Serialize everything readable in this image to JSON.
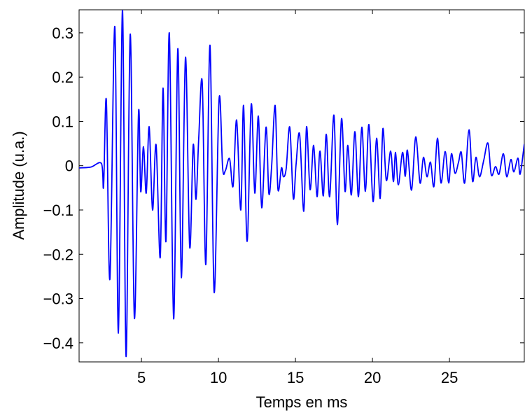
{
  "chart_data": {
    "type": "line",
    "x_label": "Temps en ms",
    "y_label": "Amplitude (u.a.)",
    "x": [
      0.95,
      1.72,
      2.4,
      2.54,
      2.72,
      2.95,
      3.27,
      3.5,
      3.77,
      4.0,
      4.27,
      4.54,
      4.81,
      4.95,
      5.13,
      5.31,
      5.5,
      5.72,
      5.95,
      6.22,
      6.4,
      6.59,
      6.81,
      7.09,
      7.36,
      7.59,
      7.86,
      8.13,
      8.36,
      8.54,
      8.72,
      8.95,
      9.18,
      9.45,
      9.72,
      10.04,
      10.27,
      10.45,
      10.72,
      10.95,
      11.18,
      11.45,
      11.63,
      11.86,
      12.13,
      12.36,
      12.59,
      12.81,
      13.09,
      13.27,
      13.45,
      13.68,
      13.86,
      14.09,
      14.22,
      14.4,
      14.63,
      14.86,
      15.04,
      15.27,
      15.54,
      15.72,
      15.95,
      16.18,
      16.4,
      16.59,
      16.81,
      17.0,
      17.22,
      17.5,
      17.72,
      17.99,
      18.22,
      18.4,
      18.63,
      18.86,
      19.09,
      19.31,
      19.54,
      19.77,
      20.04,
      20.27,
      20.5,
      20.68,
      20.9,
      21.18,
      21.36,
      21.5,
      21.68,
      21.95,
      22.13,
      22.27,
      22.54,
      22.81,
      23.09,
      23.31,
      23.54,
      23.77,
      23.99,
      24.22,
      24.45,
      24.72,
      24.95,
      25.13,
      25.36,
      25.59,
      25.77,
      25.99,
      26.27,
      26.5,
      26.72,
      26.95,
      27.22,
      27.5,
      27.72,
      27.99,
      28.22,
      28.5,
      28.72,
      28.99,
      29.18,
      29.45,
      29.59,
      29.86
    ],
    "series": [
      {
        "color": "#0000ff",
        "values": [
          -0.005,
          -0.003,
          0.005,
          -0.046,
          0.148,
          -0.256,
          0.314,
          -0.378,
          0.352,
          -0.431,
          0.297,
          -0.344,
          0.12,
          -0.058,
          0.043,
          -0.062,
          0.088,
          -0.1,
          0.047,
          -0.207,
          0.175,
          -0.171,
          0.299,
          -0.346,
          0.264,
          -0.253,
          0.245,
          -0.183,
          0.047,
          -0.076,
          0.063,
          0.186,
          -0.223,
          0.272,
          -0.286,
          0.15,
          -0.005,
          -0.011,
          0.016,
          -0.046,
          0.103,
          -0.1,
          0.136,
          -0.171,
          0.139,
          -0.062,
          0.112,
          -0.095,
          0.087,
          -0.062,
          -0.003,
          0.136,
          -0.052,
          -0.005,
          -0.025,
          -0.006,
          0.087,
          -0.074,
          0.003,
          0.071,
          -0.103,
          0.088,
          -0.054,
          0.046,
          -0.07,
          0.033,
          -0.068,
          0.071,
          -0.07,
          0.114,
          -0.133,
          0.106,
          -0.058,
          0.046,
          -0.066,
          0.077,
          -0.07,
          0.087,
          -0.058,
          0.093,
          -0.081,
          0.062,
          -0.074,
          0.084,
          -0.033,
          0.033,
          -0.036,
          0.03,
          -0.043,
          0.03,
          -0.024,
          0.035,
          -0.055,
          0.065,
          -0.039,
          0.019,
          -0.025,
          0.008,
          -0.047,
          0.062,
          -0.039,
          0.032,
          -0.039,
          0.027,
          -0.017,
          0.008,
          0.03,
          -0.039,
          0.081,
          -0.035,
          0.019,
          -0.025,
          0.011,
          0.051,
          -0.021,
          -0.002,
          -0.019,
          0.027,
          -0.025,
          0.014,
          -0.014,
          0.017,
          -0.019,
          0.049
        ]
      }
    ],
    "xlim": [
      0.95,
      29.86
    ],
    "ylim": [
      -0.443,
      0.352
    ],
    "xticks": [
      5,
      10,
      15,
      20,
      25
    ],
    "yticks": [
      {
        "value": -0.4,
        "label": "−0.4"
      },
      {
        "value": -0.3,
        "label": "−0.3"
      },
      {
        "value": -0.2,
        "label": "−0.2"
      },
      {
        "value": -0.1,
        "label": "−0.1"
      },
      0,
      0.1,
      0.2,
      0.3
    ],
    "grid": false
  }
}
